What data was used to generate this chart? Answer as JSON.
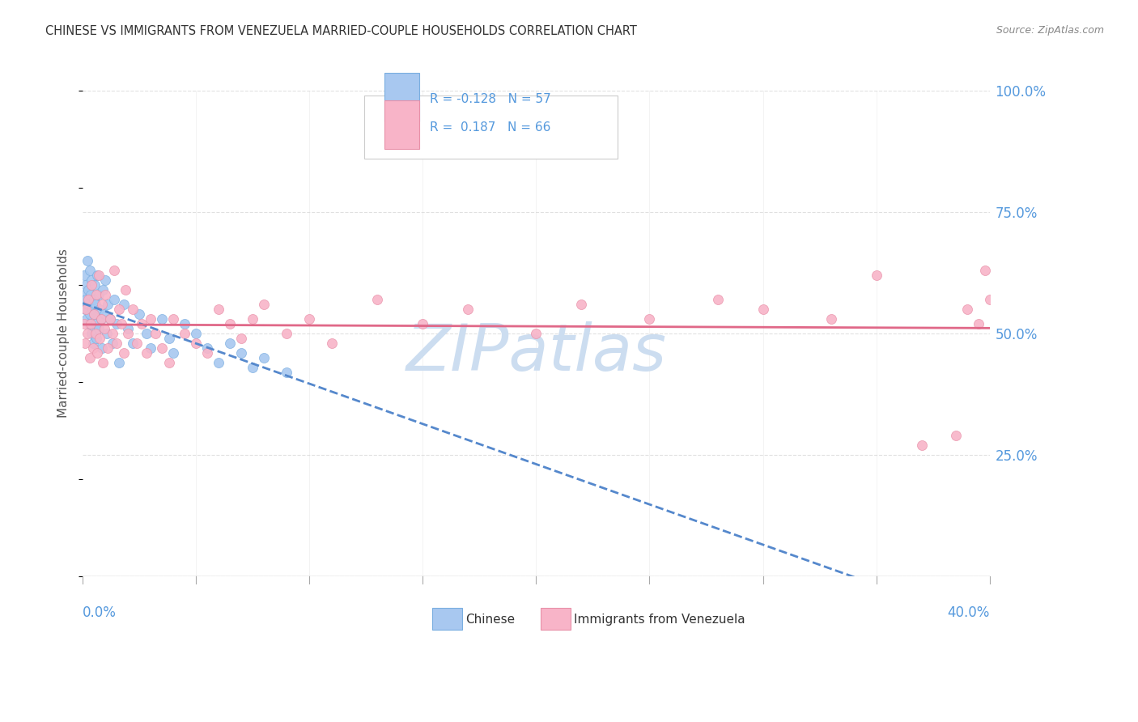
{
  "title": "CHINESE VS IMMIGRANTS FROM VENEZUELA MARRIED-COUPLE HOUSEHOLDS CORRELATION CHART",
  "source": "Source: ZipAtlas.com",
  "ylabel": "Married-couple Households",
  "xlim": [
    0.0,
    40.0
  ],
  "ylim": [
    0.0,
    100.0
  ],
  "yticks_right": [
    25.0,
    50.0,
    75.0,
    100.0
  ],
  "xticks": [
    0,
    5,
    10,
    15,
    20,
    25,
    30,
    35,
    40
  ],
  "series": [
    {
      "label": "Chinese",
      "R": -0.128,
      "N": 57,
      "dot_color": "#a8c8f0",
      "edge_color": "#7aaee0",
      "line_color": "#5588cc",
      "line_style": "--",
      "x": [
        0.05,
        0.08,
        0.1,
        0.12,
        0.15,
        0.18,
        0.2,
        0.22,
        0.25,
        0.28,
        0.3,
        0.32,
        0.35,
        0.38,
        0.4,
        0.42,
        0.45,
        0.48,
        0.5,
        0.52,
        0.55,
        0.58,
        0.6,
        0.65,
        0.7,
        0.72,
        0.75,
        0.8,
        0.85,
        0.9,
        0.95,
        1.0,
        1.05,
        1.1,
        1.2,
        1.3,
        1.4,
        1.5,
        1.6,
        1.8,
        2.0,
        2.2,
        2.5,
        2.8,
        3.0,
        3.5,
        3.8,
        4.0,
        4.5,
        5.0,
        5.5,
        6.0,
        6.5,
        7.0,
        7.5,
        8.0,
        9.0
      ],
      "y": [
        58,
        62,
        55,
        60,
        57,
        53,
        65,
        56,
        59,
        52,
        63,
        54,
        58,
        50,
        61,
        55,
        48,
        57,
        54,
        60,
        52,
        56,
        49,
        62,
        58,
        51,
        55,
        53,
        47,
        59,
        54,
        61,
        50,
        56,
        53,
        48,
        57,
        52,
        44,
        56,
        51,
        48,
        54,
        50,
        47,
        53,
        49,
        46,
        52,
        50,
        47,
        44,
        48,
        46,
        43,
        45,
        42
      ]
    },
    {
      "label": "Immigrants from Venezuela",
      "R": 0.187,
      "N": 66,
      "dot_color": "#f8b4c8",
      "edge_color": "#e890a8",
      "line_color": "#e06888",
      "line_style": "-",
      "x": [
        0.05,
        0.1,
        0.15,
        0.2,
        0.25,
        0.3,
        0.35,
        0.4,
        0.45,
        0.5,
        0.55,
        0.6,
        0.65,
        0.7,
        0.75,
        0.8,
        0.85,
        0.9,
        0.95,
        1.0,
        1.1,
        1.2,
        1.3,
        1.4,
        1.5,
        1.6,
        1.7,
        1.8,
        1.9,
        2.0,
        2.2,
        2.4,
        2.6,
        2.8,
        3.0,
        3.2,
        3.5,
        3.8,
        4.0,
        4.5,
        5.0,
        5.5,
        6.0,
        6.5,
        7.0,
        7.5,
        8.0,
        9.0,
        10.0,
        11.0,
        13.0,
        15.0,
        17.0,
        20.0,
        22.0,
        25.0,
        28.0,
        30.0,
        33.0,
        35.0,
        37.0,
        38.5,
        39.0,
        39.5,
        39.8,
        40.0
      ],
      "y": [
        52,
        48,
        55,
        50,
        57,
        45,
        52,
        60,
        47,
        54,
        50,
        58,
        46,
        62,
        49,
        53,
        56,
        44,
        51,
        58,
        47,
        53,
        50,
        63,
        48,
        55,
        52,
        46,
        59,
        50,
        55,
        48,
        52,
        46,
        53,
        50,
        47,
        44,
        53,
        50,
        48,
        46,
        55,
        52,
        49,
        53,
        56,
        50,
        53,
        48,
        57,
        52,
        55,
        50,
        56,
        53,
        57,
        55,
        53,
        62,
        27,
        29,
        55,
        52,
        63,
        57
      ]
    }
  ],
  "watermark": "ZIPatlas",
  "watermark_color": "#ccddf0",
  "background_color": "#ffffff",
  "grid_color": "#dddddd",
  "title_color": "#333333",
  "axis_label_color": "#5599dd",
  "legend_box_color": "#eeeeee",
  "legend_border_color": "#cccccc",
  "source_color": "#888888",
  "ylabel_color": "#555555"
}
